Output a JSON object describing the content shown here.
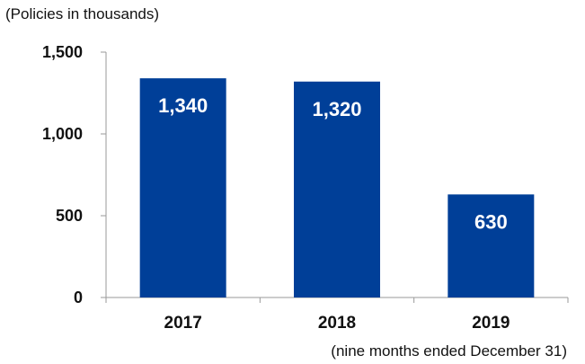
{
  "header": {
    "unit_note": "(Policies in thousands)"
  },
  "footer": {
    "period_note": "(nine months ended December 31)"
  },
  "chart_data": {
    "type": "bar",
    "title": "",
    "xlabel": "",
    "ylabel": "",
    "categories": [
      "2017",
      "2018",
      "2019"
    ],
    "values": [
      1340,
      1320,
      630
    ],
    "value_labels": [
      "1,340",
      "1,320",
      "630"
    ],
    "ylim": [
      0,
      1500
    ],
    "yticks": [
      0,
      500,
      1000,
      1500
    ],
    "ytick_labels": [
      "0",
      "500",
      "1,000",
      "1,500"
    ],
    "grid": false,
    "legend": "none",
    "bar_color": "#003f98",
    "label_color": "#ffffff"
  }
}
